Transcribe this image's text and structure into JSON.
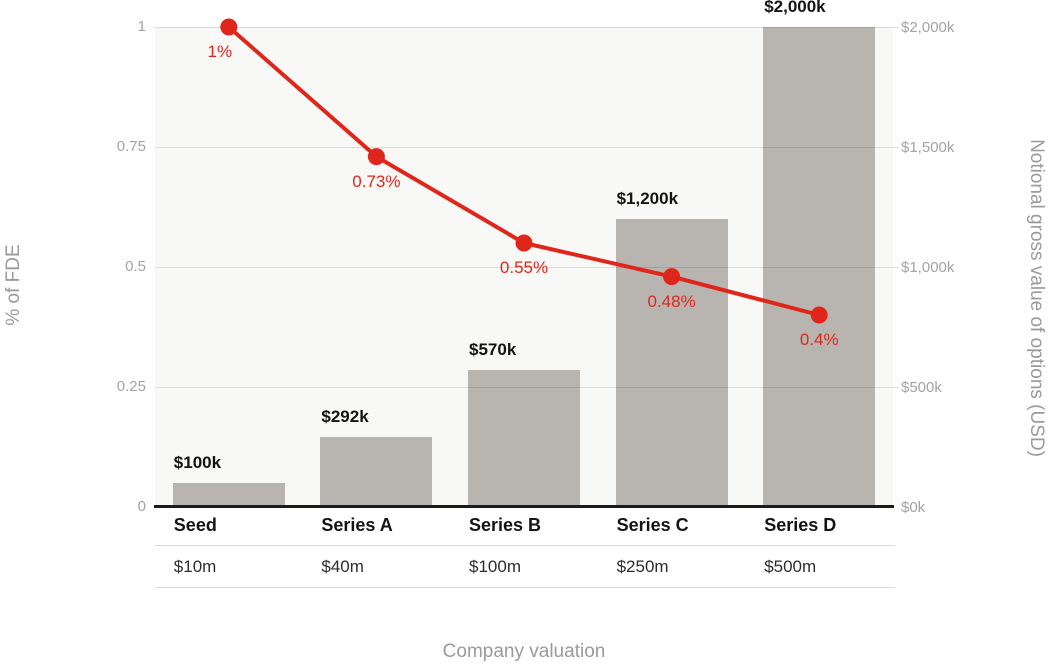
{
  "chart_data": {
    "type": "bar+line combo",
    "categories": [
      "Seed",
      "Series A",
      "Series B",
      "Series C",
      "Series D"
    ],
    "valuation_row": [
      "$10m",
      "$40m",
      "$100m",
      "$250m",
      "$500m"
    ],
    "series": [
      {
        "name": "Notional gross value of options (USD)",
        "type": "bar",
        "values_usd_k": [
          100,
          292,
          570,
          1200,
          2000
        ],
        "labels": [
          "$100k",
          "$292k",
          "$570k",
          "$1,200k",
          "$2,000k"
        ]
      },
      {
        "name": "% of FDE",
        "type": "line",
        "values": [
          1.0,
          0.73,
          0.55,
          0.48,
          0.4
        ],
        "labels": [
          "1%",
          "0.73%",
          "0.55%",
          "0.48%",
          "0.4%"
        ]
      }
    ],
    "left_axis": {
      "title": "% of FDE",
      "ticks": [
        "1",
        "0.75",
        "0.5",
        "0.25",
        "0"
      ],
      "tick_values": [
        1,
        0.75,
        0.5,
        0.25,
        0
      ],
      "range": [
        0,
        1
      ]
    },
    "right_axis": {
      "title": "Notional gross value of options (USD)",
      "ticks": [
        "$2,000k",
        "$1,500k",
        "$1,000k",
        "$500k",
        "$0k"
      ],
      "tick_values_k": [
        2000,
        1500,
        1000,
        500,
        0
      ],
      "range_k": [
        0,
        2000
      ]
    },
    "x_axis": {
      "title": "Company valuation"
    },
    "legend": "none",
    "grid": "horizontal",
    "colors": {
      "bar": "#b8b5b0",
      "line": "#e0261b",
      "plot_background": "#f8f8f6",
      "grid_line": "#e2e1df",
      "tick_text": "#a4a3a1",
      "axis_title_text": "#9b9a98",
      "label_text": "#141414",
      "baseline": "#1b1b1b"
    }
  }
}
